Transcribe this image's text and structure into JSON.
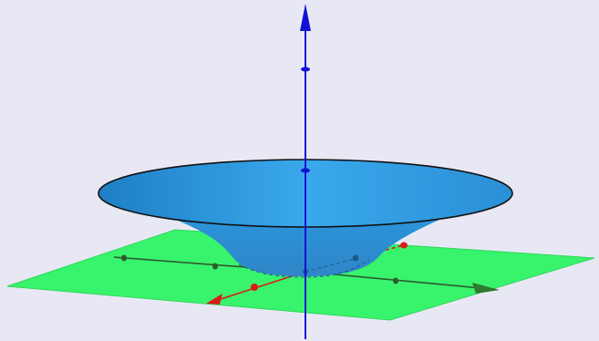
{
  "scene": {
    "background_color": "#e8e8f4",
    "plane_color": "#38f46c",
    "surface_color": "#2f9bdc",
    "z_axis_color": "#1212d6",
    "x_axis_color": "#dc1a1a",
    "y_axis_color": "#2d5a2d",
    "axes": {
      "x": {
        "tick_marks": 4,
        "has_arrow": true
      },
      "y": {
        "tick_marks": 4,
        "has_arrow": true
      },
      "z": {
        "tick_marks": 2,
        "has_arrow": true
      }
    },
    "surface": {
      "shape": "funnel",
      "rim_outline": true
    }
  }
}
